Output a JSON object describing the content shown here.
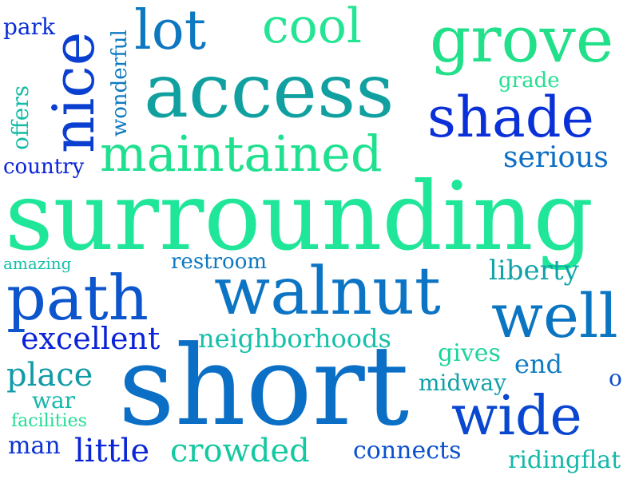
{
  "words": [
    {
      "text": "surrounding",
      "color": "#1fe699"
    },
    {
      "text": "short",
      "color": "#0b6fc6"
    },
    {
      "text": "access",
      "color": "#10a0a0"
    },
    {
      "text": "walnut",
      "color": "#0b74c4"
    },
    {
      "text": "path",
      "color": "#0d55cc"
    },
    {
      "text": "grove",
      "color": "#22e08a"
    },
    {
      "text": "shade",
      "color": "#0a30d8"
    },
    {
      "text": "nice",
      "color": "#0a3fd0"
    },
    {
      "text": "maintained",
      "color": "#1fe08e"
    },
    {
      "text": "well",
      "color": "#0b75c2"
    },
    {
      "text": "wide",
      "color": "#0a47d0"
    },
    {
      "text": "cool",
      "color": "#24e594"
    },
    {
      "text": "lot",
      "color": "#0d77c0"
    },
    {
      "text": "excellent",
      "color": "#0a22d8"
    },
    {
      "text": "place",
      "color": "#109ba6"
    },
    {
      "text": "crowded",
      "color": "#14c8a0"
    },
    {
      "text": "neighborhoods",
      "color": "#14c0a8"
    },
    {
      "text": "serious",
      "color": "#0d6ec4"
    },
    {
      "text": "little",
      "color": "#0a25d8"
    },
    {
      "text": "connects",
      "color": "#0b50cc"
    },
    {
      "text": "wonderful",
      "color": "#0d7ac0"
    },
    {
      "text": "liberty",
      "color": "#10a4a8"
    },
    {
      "text": "ridingflat",
      "color": "#14b8a8"
    },
    {
      "text": "country",
      "color": "#0a22d8"
    },
    {
      "text": "park",
      "color": "#0a2ed6"
    },
    {
      "text": "offers",
      "color": "#14bca6"
    },
    {
      "text": "gives",
      "color": "#1cd49c"
    },
    {
      "text": "midway",
      "color": "#10a0a8"
    },
    {
      "text": "end",
      "color": "#0d7ac2"
    },
    {
      "text": "war",
      "color": "#14b6aa"
    },
    {
      "text": "man",
      "color": "#0a32d4"
    },
    {
      "text": "restroom",
      "color": "#0d78c2"
    },
    {
      "text": "amazing",
      "color": "#14c0a8"
    },
    {
      "text": "facilities",
      "color": "#22dc94"
    },
    {
      "text": "grade",
      "color": "#24e090"
    },
    {
      "text": "o",
      "color": "#0d50cc"
    }
  ]
}
